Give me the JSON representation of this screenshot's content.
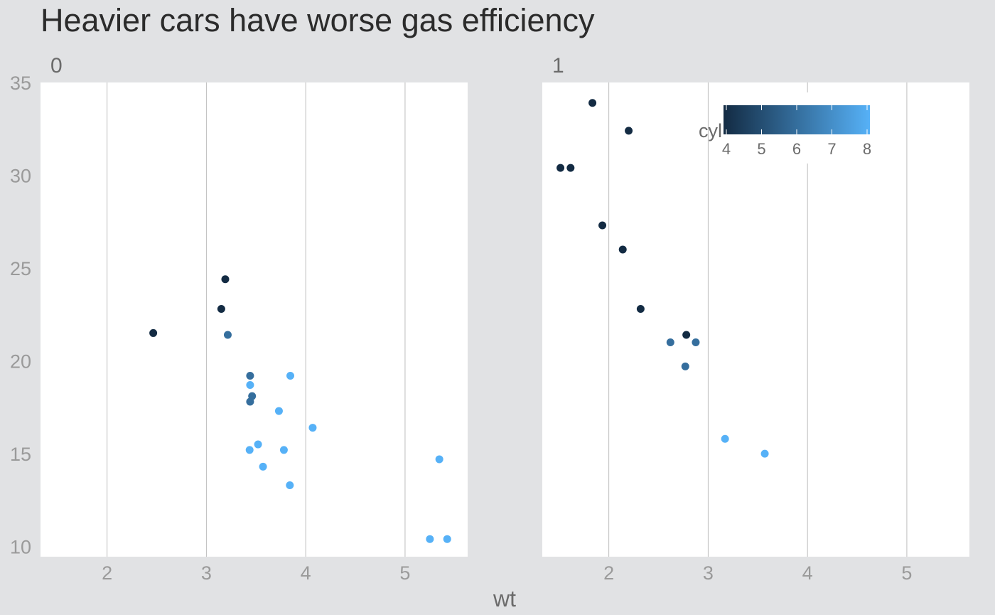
{
  "chart_data": {
    "type": "scatter",
    "title": "Heavier cars have worse gas efficiency",
    "xlabel": "wt",
    "ylabel": "",
    "xlim": [
      1.33,
      5.63
    ],
    "ylim": [
      9.45,
      35.0
    ],
    "x_ticks": [
      2,
      3,
      4,
      5
    ],
    "y_ticks": [
      10,
      15,
      20,
      25,
      30,
      35
    ],
    "grid": "vertical major gridlines",
    "color_legend": {
      "title": "cyl",
      "range": [
        4,
        8
      ],
      "ticks": [
        4,
        5,
        6,
        7,
        8
      ],
      "low_color": "#132B43",
      "high_color": "#56B1F7",
      "position": "top-right inside panel 1"
    },
    "facets": [
      {
        "label": "0",
        "points": [
          {
            "x": 2.465,
            "y": 21.5,
            "cyl": 4
          },
          {
            "x": 3.19,
            "y": 24.4,
            "cyl": 4
          },
          {
            "x": 3.15,
            "y": 22.8,
            "cyl": 4
          },
          {
            "x": 3.215,
            "y": 21.4,
            "cyl": 6
          },
          {
            "x": 3.44,
            "y": 19.2,
            "cyl": 6
          },
          {
            "x": 3.44,
            "y": 17.8,
            "cyl": 6
          },
          {
            "x": 3.46,
            "y": 18.1,
            "cyl": 6
          },
          {
            "x": 3.44,
            "y": 18.7,
            "cyl": 8
          },
          {
            "x": 3.845,
            "y": 19.2,
            "cyl": 8
          },
          {
            "x": 3.73,
            "y": 17.3,
            "cyl": 8
          },
          {
            "x": 4.07,
            "y": 16.4,
            "cyl": 8
          },
          {
            "x": 3.52,
            "y": 15.5,
            "cyl": 8
          },
          {
            "x": 3.435,
            "y": 15.2,
            "cyl": 8
          },
          {
            "x": 3.78,
            "y": 15.2,
            "cyl": 8
          },
          {
            "x": 3.57,
            "y": 14.3,
            "cyl": 8
          },
          {
            "x": 3.84,
            "y": 13.3,
            "cyl": 8
          },
          {
            "x": 5.345,
            "y": 14.7,
            "cyl": 8
          },
          {
            "x": 5.25,
            "y": 10.4,
            "cyl": 8
          },
          {
            "x": 5.424,
            "y": 10.4,
            "cyl": 8
          }
        ]
      },
      {
        "label": "1",
        "points": [
          {
            "x": 1.835,
            "y": 33.9,
            "cyl": 4
          },
          {
            "x": 2.2,
            "y": 32.4,
            "cyl": 4
          },
          {
            "x": 1.513,
            "y": 30.4,
            "cyl": 4
          },
          {
            "x": 1.615,
            "y": 30.4,
            "cyl": 4
          },
          {
            "x": 1.935,
            "y": 27.3,
            "cyl": 4
          },
          {
            "x": 2.14,
            "y": 26.0,
            "cyl": 4
          },
          {
            "x": 2.32,
            "y": 22.8,
            "cyl": 4
          },
          {
            "x": 2.78,
            "y": 21.4,
            "cyl": 4
          },
          {
            "x": 2.62,
            "y": 21.0,
            "cyl": 6
          },
          {
            "x": 2.875,
            "y": 21.0,
            "cyl": 6
          },
          {
            "x": 2.77,
            "y": 19.7,
            "cyl": 6
          },
          {
            "x": 3.17,
            "y": 15.8,
            "cyl": 8
          },
          {
            "x": 3.57,
            "y": 15.0,
            "cyl": 8
          }
        ]
      }
    ]
  }
}
